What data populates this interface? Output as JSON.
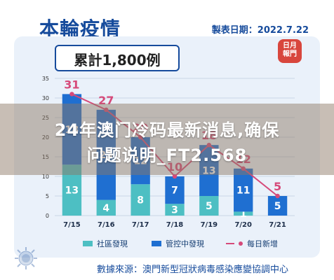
{
  "header": {
    "title": "本輪疫情",
    "date": "製表日期：2022.7.22"
  },
  "summary": {
    "total": "累計1,800例"
  },
  "seal": {
    "text": "日月報門"
  },
  "legend": {
    "community": "社區發現",
    "controlled": "管控中發現",
    "new_daily": "每日新增"
  },
  "footer": {
    "source": "數據來源：澳門新型冠狀病毒感染應變協調中心"
  },
  "overlay": {
    "line1": "24年澳门冷码最新消息,确保",
    "line2": "问题说明_FT2.568"
  },
  "colors": {
    "community": "#4dbfc3",
    "controlled": "#1f6fd1",
    "line": "#d64a7a",
    "navy": "#164b9c"
  },
  "chart_data": {
    "type": "bar",
    "stacked": true,
    "categories": [
      "7/15",
      "7/16",
      "7/17",
      "7/18",
      "7/19",
      "7/20",
      "7/21"
    ],
    "series": [
      {
        "name": "社區發現",
        "values": [
          13,
          4,
          8,
          3,
          5,
          1,
          0
        ]
      },
      {
        "name": "管控中發現",
        "values": [
          18,
          23,
          12,
          7,
          13,
          11,
          5
        ]
      }
    ],
    "line_series": {
      "name": "每日新增",
      "values": [
        31,
        27,
        20,
        10,
        18,
        12,
        5
      ]
    },
    "ylim": [
      0,
      35
    ],
    "yticks": [
      0,
      5,
      10,
      15,
      20,
      25,
      30,
      35
    ],
    "grid": true,
    "legend_position": "bottom"
  }
}
